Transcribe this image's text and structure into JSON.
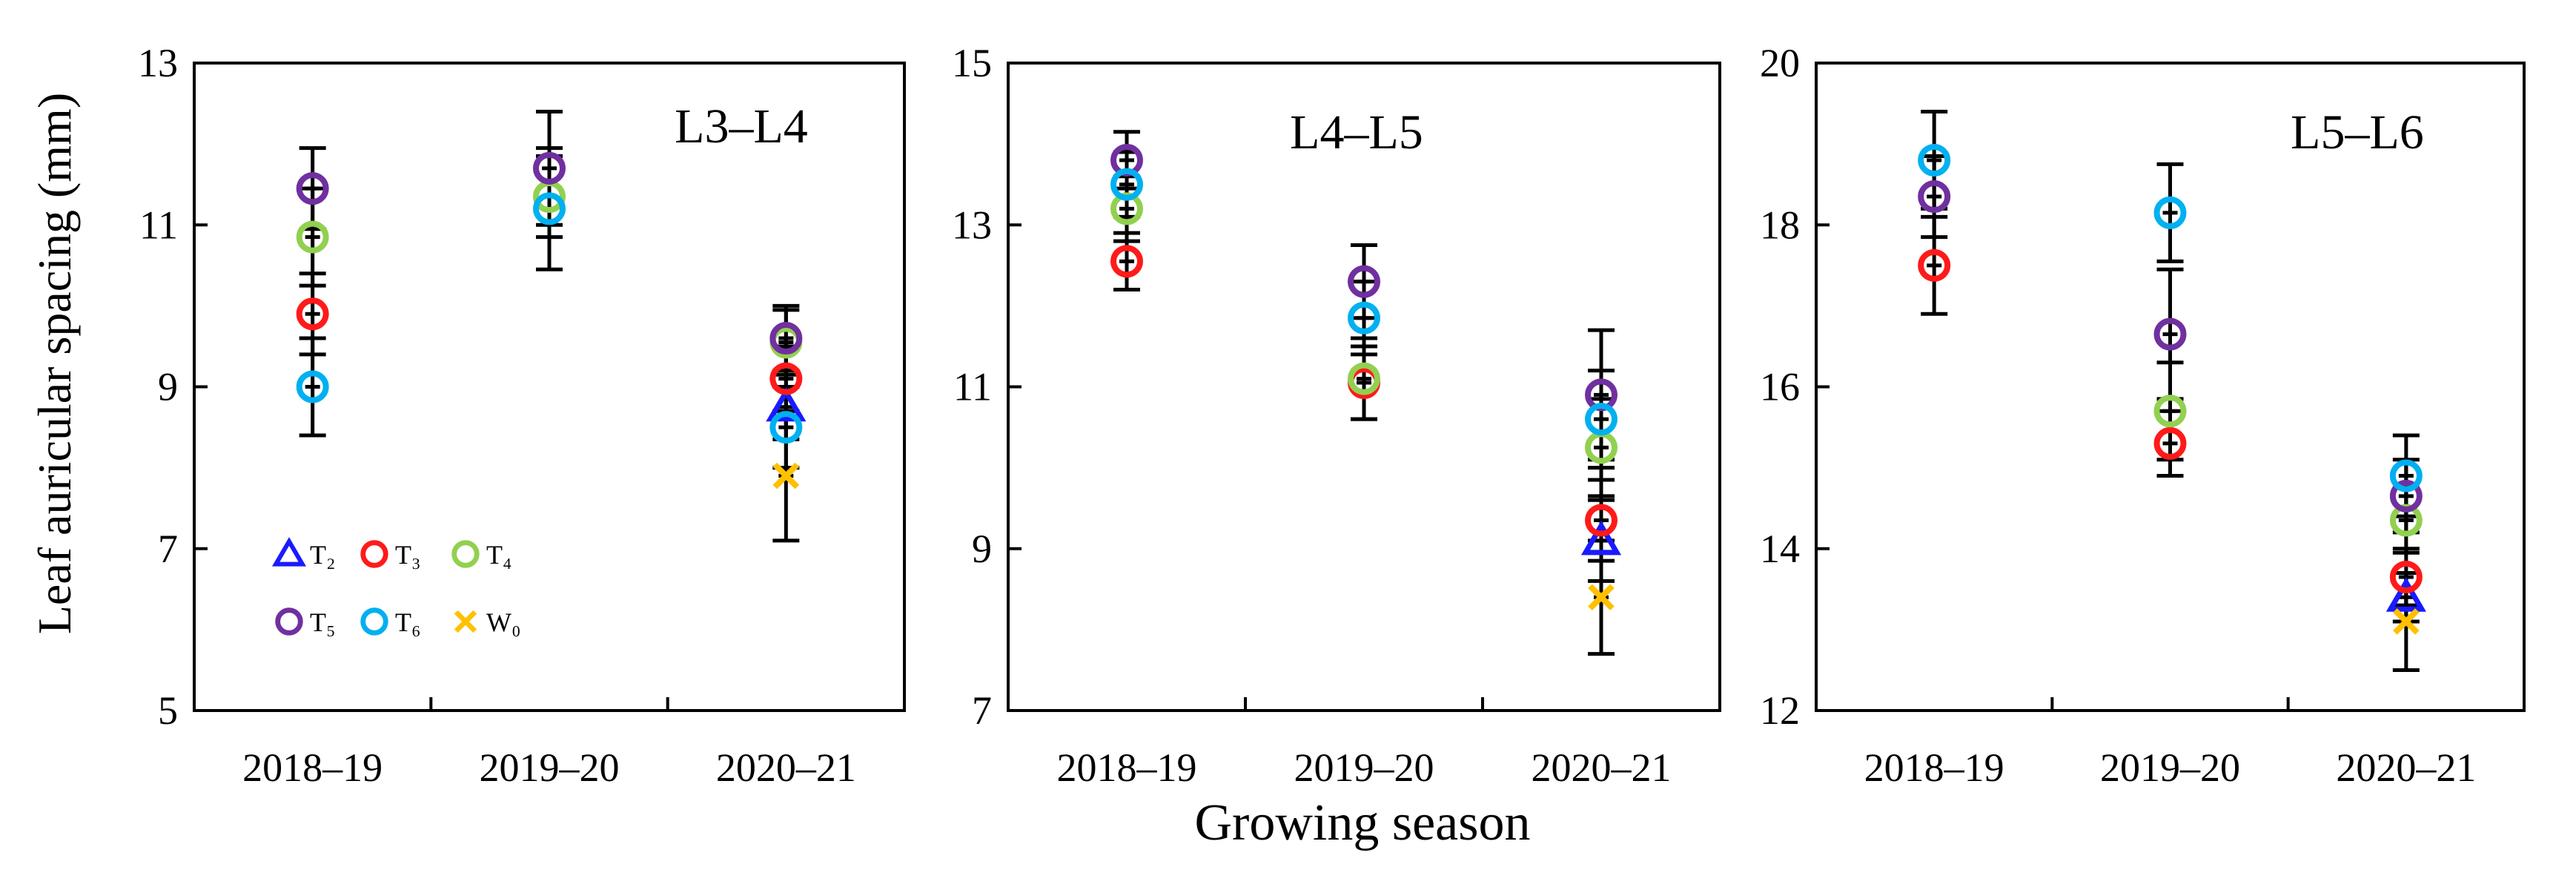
{
  "figure": {
    "ylabel": "Leaf auricular spacing (mm)",
    "xlabel": "Growing season"
  },
  "colors": {
    "T2": "#1a1aff",
    "T3": "#ff1a1a",
    "T4": "#92d050",
    "T5": "#7030a0",
    "T6": "#00b0f0",
    "W0": "#ffc000"
  },
  "legend": [
    {
      "key": "T2",
      "label": "T₂",
      "marker": "triangle"
    },
    {
      "key": "T3",
      "label": "T₃",
      "marker": "circle"
    },
    {
      "key": "T4",
      "label": "T₄",
      "marker": "circle"
    },
    {
      "key": "T5",
      "label": "T₅",
      "marker": "circle"
    },
    {
      "key": "T6",
      "label": "T₆",
      "marker": "circle"
    },
    {
      "key": "W0",
      "label": "W₀",
      "marker": "cross"
    }
  ],
  "chart_data": [
    {
      "type": "scatter",
      "title": "L3–L4",
      "categories": [
        "2018–19",
        "2019–20",
        "2020–21"
      ],
      "ylim": [
        5,
        13
      ],
      "yticks": [
        5,
        7,
        9,
        11,
        13
      ],
      "series": [
        {
          "name": "T2",
          "values": [
            null,
            null,
            8.75
          ],
          "err": [
            null,
            null,
            0.4
          ]
        },
        {
          "name": "T3",
          "values": [
            9.9,
            null,
            9.1
          ],
          "err": [
            0.5,
            null,
            0.4
          ]
        },
        {
          "name": "T4",
          "values": [
            10.85,
            11.35,
            9.55
          ],
          "err": [
            0.6,
            0.5,
            0.4
          ]
        },
        {
          "name": "T5",
          "values": [
            11.45,
            11.7,
            9.6
          ],
          "err": [
            0.5,
            0.7,
            0.4
          ]
        },
        {
          "name": "T6",
          "values": [
            9.0,
            11.2,
            8.5
          ],
          "err": [
            0.6,
            0.75,
            0.5
          ]
        },
        {
          "name": "W0",
          "values": [
            null,
            null,
            7.9
          ],
          "err": [
            null,
            null,
            0.8
          ]
        }
      ]
    },
    {
      "type": "scatter",
      "title": "L4–L5",
      "categories": [
        "2018–19",
        "2019–20",
        "2020–21"
      ],
      "ylim": [
        7,
        15
      ],
      "yticks": [
        7,
        9,
        11,
        13,
        15
      ],
      "series": [
        {
          "name": "T2",
          "values": [
            null,
            null,
            9.1
          ],
          "err": [
            null,
            null,
            0.5
          ]
        },
        {
          "name": "T3",
          "values": [
            12.55,
            11.05,
            9.35
          ],
          "err": [
            0.35,
            0.45,
            0.5
          ]
        },
        {
          "name": "T4",
          "values": [
            13.2,
            11.1,
            10.25
          ],
          "err": [
            0.4,
            0.5,
            0.6
          ]
        },
        {
          "name": "T5",
          "values": [
            13.8,
            12.3,
            10.9
          ],
          "err": [
            0.35,
            0.45,
            0.8
          ]
        },
        {
          "name": "T6",
          "values": [
            13.5,
            11.85,
            10.6
          ],
          "err": [
            0.4,
            0.45,
            0.6
          ]
        },
        {
          "name": "W0",
          "values": [
            null,
            null,
            8.4
          ],
          "err": [
            null,
            null,
            0.7
          ]
        }
      ]
    },
    {
      "type": "scatter",
      "title": "L5–L6",
      "categories": [
        "2018–19",
        "2019–20",
        "2020–21"
      ],
      "ylim": [
        12,
        20
      ],
      "yticks": [
        12,
        14,
        16,
        18,
        20
      ],
      "series": [
        {
          "name": "T2",
          "values": [
            null,
            null,
            13.4
          ],
          "err": [
            null,
            null,
            0.3
          ]
        },
        {
          "name": "T3",
          "values": [
            17.5,
            15.3,
            13.65
          ],
          "err": [
            0.6,
            0.4,
            0.35
          ]
        },
        {
          "name": "T4",
          "values": [
            null,
            15.7,
            14.35
          ],
          "err": [
            null,
            0.6,
            0.4
          ]
        },
        {
          "name": "T5",
          "values": [
            18.35,
            16.65,
            14.65
          ],
          "err": [
            0.5,
            0.8,
            0.45
          ]
        },
        {
          "name": "T6",
          "values": [
            18.8,
            18.15,
            14.9
          ],
          "err": [
            0.6,
            0.6,
            0.5
          ]
        },
        {
          "name": "W0",
          "values": [
            null,
            null,
            13.1
          ],
          "err": [
            null,
            null,
            0.6
          ]
        }
      ]
    }
  ]
}
